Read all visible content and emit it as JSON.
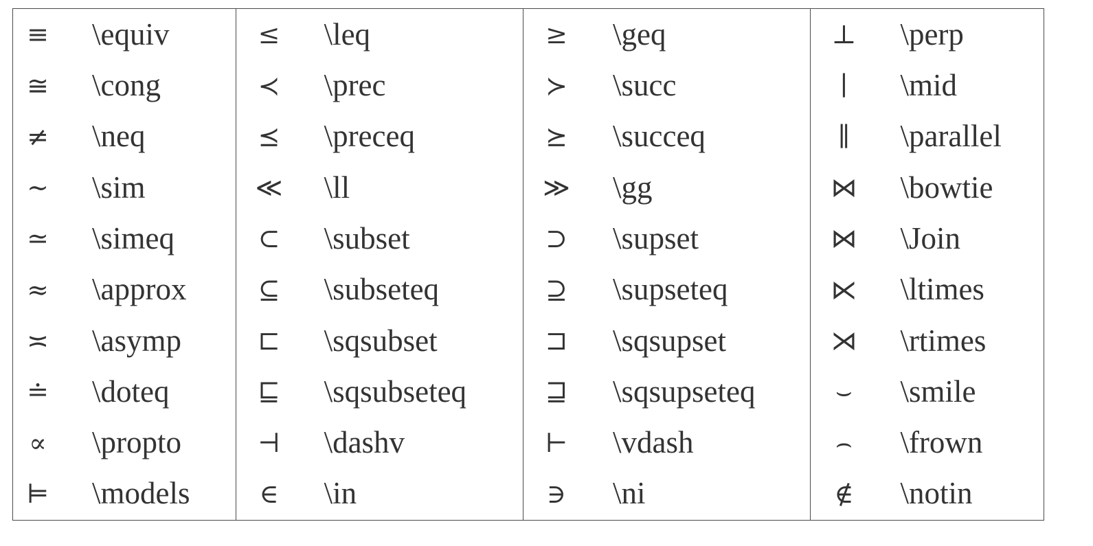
{
  "columns": [
    {
      "rows": [
        {
          "symbol": "≡",
          "command": "\\equiv"
        },
        {
          "symbol": "≅",
          "command": "\\cong"
        },
        {
          "symbol": "≠",
          "command": "\\neq"
        },
        {
          "symbol": "∼",
          "command": "\\sim"
        },
        {
          "symbol": "≃",
          "command": "\\simeq"
        },
        {
          "symbol": "≈",
          "command": "\\approx"
        },
        {
          "symbol": "≍",
          "command": "\\asymp"
        },
        {
          "symbol": "≐",
          "command": "\\doteq"
        },
        {
          "symbol": "∝",
          "command": "\\propto"
        },
        {
          "symbol": "⊨",
          "command": "\\models"
        }
      ]
    },
    {
      "rows": [
        {
          "symbol": "≤",
          "command": "\\leq"
        },
        {
          "symbol": "≺",
          "command": "\\prec"
        },
        {
          "symbol": "⪯",
          "command": "\\preceq"
        },
        {
          "symbol": "≪",
          "command": "\\ll"
        },
        {
          "symbol": "⊂",
          "command": "\\subset"
        },
        {
          "symbol": "⊆",
          "command": "\\subseteq"
        },
        {
          "symbol": "⊏",
          "command": "\\sqsubset"
        },
        {
          "symbol": "⊑",
          "command": "\\sqsubseteq"
        },
        {
          "symbol": "⊣",
          "command": "\\dashv"
        },
        {
          "symbol": "∈",
          "command": "\\in"
        }
      ]
    },
    {
      "rows": [
        {
          "symbol": "≥",
          "command": "\\geq"
        },
        {
          "symbol": "≻",
          "command": "\\succ"
        },
        {
          "symbol": "⪰",
          "command": "\\succeq"
        },
        {
          "symbol": "≫",
          "command": "\\gg"
        },
        {
          "symbol": "⊃",
          "command": "\\supset"
        },
        {
          "symbol": "⊇",
          "command": "\\supseteq"
        },
        {
          "symbol": "⊐",
          "command": "\\sqsupset"
        },
        {
          "symbol": "⊒",
          "command": "\\sqsupseteq"
        },
        {
          "symbol": "⊢",
          "command": "\\vdash"
        },
        {
          "symbol": "∋",
          "command": "\\ni"
        }
      ]
    },
    {
      "rows": [
        {
          "symbol": "⊥",
          "command": "\\perp"
        },
        {
          "symbol": "∣",
          "command": "\\mid"
        },
        {
          "symbol": "∥",
          "command": "\\parallel"
        },
        {
          "symbol": "⋈",
          "command": "\\bowtie"
        },
        {
          "symbol": "⋈",
          "command": "\\Join"
        },
        {
          "symbol": "⋉",
          "command": "\\ltimes"
        },
        {
          "symbol": "⋊",
          "command": "\\rtimes"
        },
        {
          "symbol": "⌣",
          "command": "\\smile"
        },
        {
          "symbol": "⌢",
          "command": "\\frown"
        },
        {
          "symbol": "∉",
          "command": "\\notin"
        }
      ]
    }
  ]
}
